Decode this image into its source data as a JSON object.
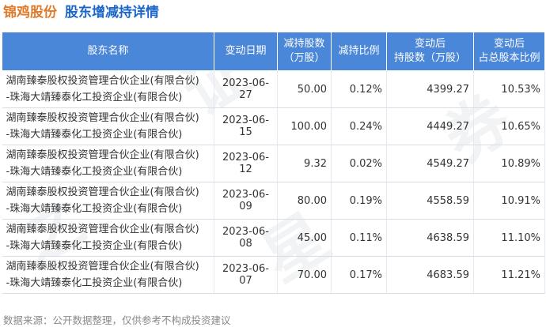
{
  "header": {
    "company": "锦鸡股份",
    "subtitle": "股东增减持详情"
  },
  "watermark": {
    "chars": [
      "证",
      "券",
      "之",
      "星"
    ]
  },
  "table": {
    "columns": [
      "股东名称",
      "变动日期",
      "减持股数（万股）",
      "减持比例",
      "变动后持股数（万股）",
      "变动后占总股本比例"
    ],
    "header_lines": [
      [
        "股东名称"
      ],
      [
        "变动日期"
      ],
      [
        "减持股数",
        "（万股）"
      ],
      [
        "减持比例"
      ],
      [
        "变动后",
        "持股数（万股）"
      ],
      [
        "变动后",
        "占总股本比例"
      ]
    ],
    "rows": [
      {
        "name_line1": "湖南臻泰股权投资管理合伙企业(有限合伙)",
        "name_line2": "-珠海大靖臻泰化工投资企业(有限合伙)",
        "date": "2023-06-27",
        "shares": "50.00",
        "ratio": "0.12%",
        "after_shares": "4399.27",
        "after_ratio": "10.53%"
      },
      {
        "name_line1": "湖南臻泰股权投资管理合伙企业(有限合伙)",
        "name_line2": "-珠海大靖臻泰化工投资企业(有限合伙)",
        "date": "2023-06-15",
        "shares": "100.00",
        "ratio": "0.24%",
        "after_shares": "4449.27",
        "after_ratio": "10.65%"
      },
      {
        "name_line1": "湖南臻泰股权投资管理合伙企业(有限合伙)",
        "name_line2": "-珠海大靖臻泰化工投资企业(有限合伙)",
        "date": "2023-06-12",
        "shares": "9.32",
        "ratio": "0.02%",
        "after_shares": "4549.27",
        "after_ratio": "10.89%"
      },
      {
        "name_line1": "湖南臻泰股权投资管理合伙企业(有限合伙)",
        "name_line2": "-珠海大靖臻泰化工投资企业(有限合伙)",
        "date": "2023-06-09",
        "shares": "80.00",
        "ratio": "0.19%",
        "after_shares": "4558.59",
        "after_ratio": "10.91%"
      },
      {
        "name_line1": "湖南臻泰股权投资管理合伙企业(有限合伙)",
        "name_line2": "-珠海大靖臻泰化工投资企业(有限合伙)",
        "date": "2023-06-08",
        "shares": "45.00",
        "ratio": "0.11%",
        "after_shares": "4638.59",
        "after_ratio": "11.10%"
      },
      {
        "name_line1": "湖南臻泰股权投资管理合伙企业(有限合伙)",
        "name_line2": "-珠海大靖臻泰化工投资企业(有限合伙)",
        "date": "2023-06-07",
        "shares": "70.00",
        "ratio": "0.17%",
        "after_shares": "4683.59",
        "after_ratio": "11.21%"
      }
    ]
  },
  "footer": {
    "text": "数据来源：公开数据整理，仅供参考不构成投资建议"
  },
  "colors": {
    "header_bg": "#4b87d9",
    "company": "#e07a2b",
    "subtitle": "#1a66c9",
    "green": "#2f9a3a"
  }
}
